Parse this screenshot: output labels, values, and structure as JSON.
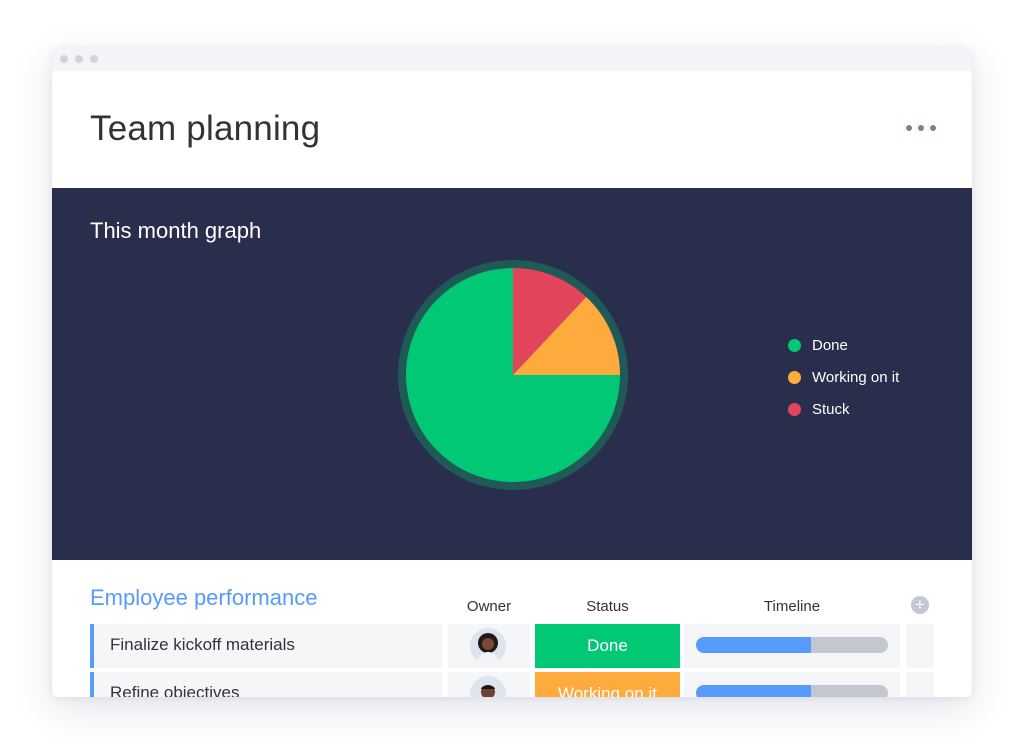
{
  "page": {
    "title": "Team planning"
  },
  "graph": {
    "title": "This month graph"
  },
  "chart_data": {
    "type": "pie",
    "slices": [
      {
        "label": "Done",
        "value": 75,
        "color": "#00c875"
      },
      {
        "label": "Working on it",
        "value": 13,
        "color": "#fdab3d"
      },
      {
        "label": "Stuck",
        "value": 12,
        "color": "#e2445c"
      }
    ],
    "legend_position": "right"
  },
  "legend": [
    {
      "label": "Done",
      "color": "#00c875"
    },
    {
      "label": "Working on it",
      "color": "#fdab3d"
    },
    {
      "label": "Stuck",
      "color": "#e2445c"
    }
  ],
  "table": {
    "title": "Employee performance",
    "columns": {
      "owner": "Owner",
      "status": "Status",
      "timeline": "Timeline"
    },
    "rows": [
      {
        "name": "Finalize kickoff materials",
        "status": "Done",
        "status_color": "#00c875",
        "timeline_progress": 0.6,
        "owner_icon": "avatar-woman-icon"
      },
      {
        "name": "Refine objectives",
        "status": "Working on it",
        "status_color": "#fdab3d",
        "timeline_progress": 0.6,
        "owner_icon": "avatar-man-icon"
      }
    ]
  },
  "icons": {
    "menu": "more-horizontal-icon",
    "add_column": "plus-circle-icon"
  },
  "colors": {
    "panel": "#292e4c",
    "accent": "#579bfc",
    "done": "#00c875",
    "working": "#fdab3d",
    "stuck": "#e2445c"
  }
}
